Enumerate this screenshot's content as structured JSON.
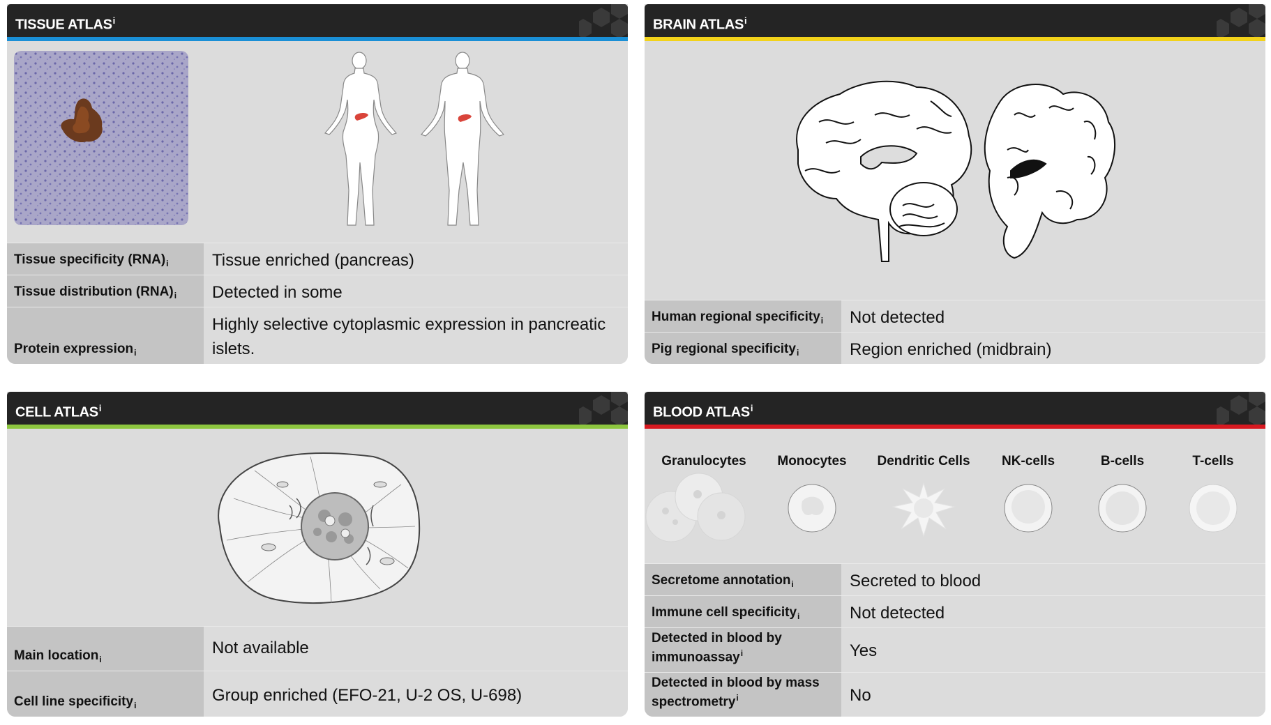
{
  "tissue": {
    "title": "TISSUE ATLAS",
    "info": "i",
    "accent": "#1a8fd6",
    "rows": [
      {
        "label": "Tissue specificity (RNA)",
        "value": "Tissue enriched (pancreas)"
      },
      {
        "label": "Tissue distribution (RNA)",
        "value": "Detected in some"
      },
      {
        "label": "Protein expression",
        "value": "Highly selective cytoplasmic expression in pancreatic islets."
      }
    ]
  },
  "brain": {
    "title": "BRAIN ATLAS",
    "info": "i",
    "accent": "#f2d21a",
    "rows": [
      {
        "label": "Human regional specificity",
        "value": "Not detected"
      },
      {
        "label": "Pig regional specificity",
        "value": "Region enriched (midbrain)"
      }
    ]
  },
  "cell": {
    "title": "CELL ATLAS",
    "info": "i",
    "accent": "#8dc63f",
    "rows": [
      {
        "label": "Main location",
        "value": "Not available"
      },
      {
        "label": "Cell line specificity",
        "value": "Group enriched (EFO-21, U-2 OS, U-698)"
      }
    ]
  },
  "blood": {
    "title": "BLOOD ATLAS",
    "info": "i",
    "accent": "#d71920",
    "cell_types": [
      "Granulocytes",
      "Monocytes",
      "Dendritic Cells",
      "NK-cells",
      "B-cells",
      "T-cells"
    ],
    "rows": [
      {
        "label": "Secretome annotation",
        "value": "Secreted to blood"
      },
      {
        "label": "Immune cell specificity",
        "value": "Not detected"
      },
      {
        "label": "Detected in blood by immunoassay",
        "value": "Yes"
      },
      {
        "label": "Detected in blood by mass spectrometry",
        "value": "No"
      }
    ]
  }
}
